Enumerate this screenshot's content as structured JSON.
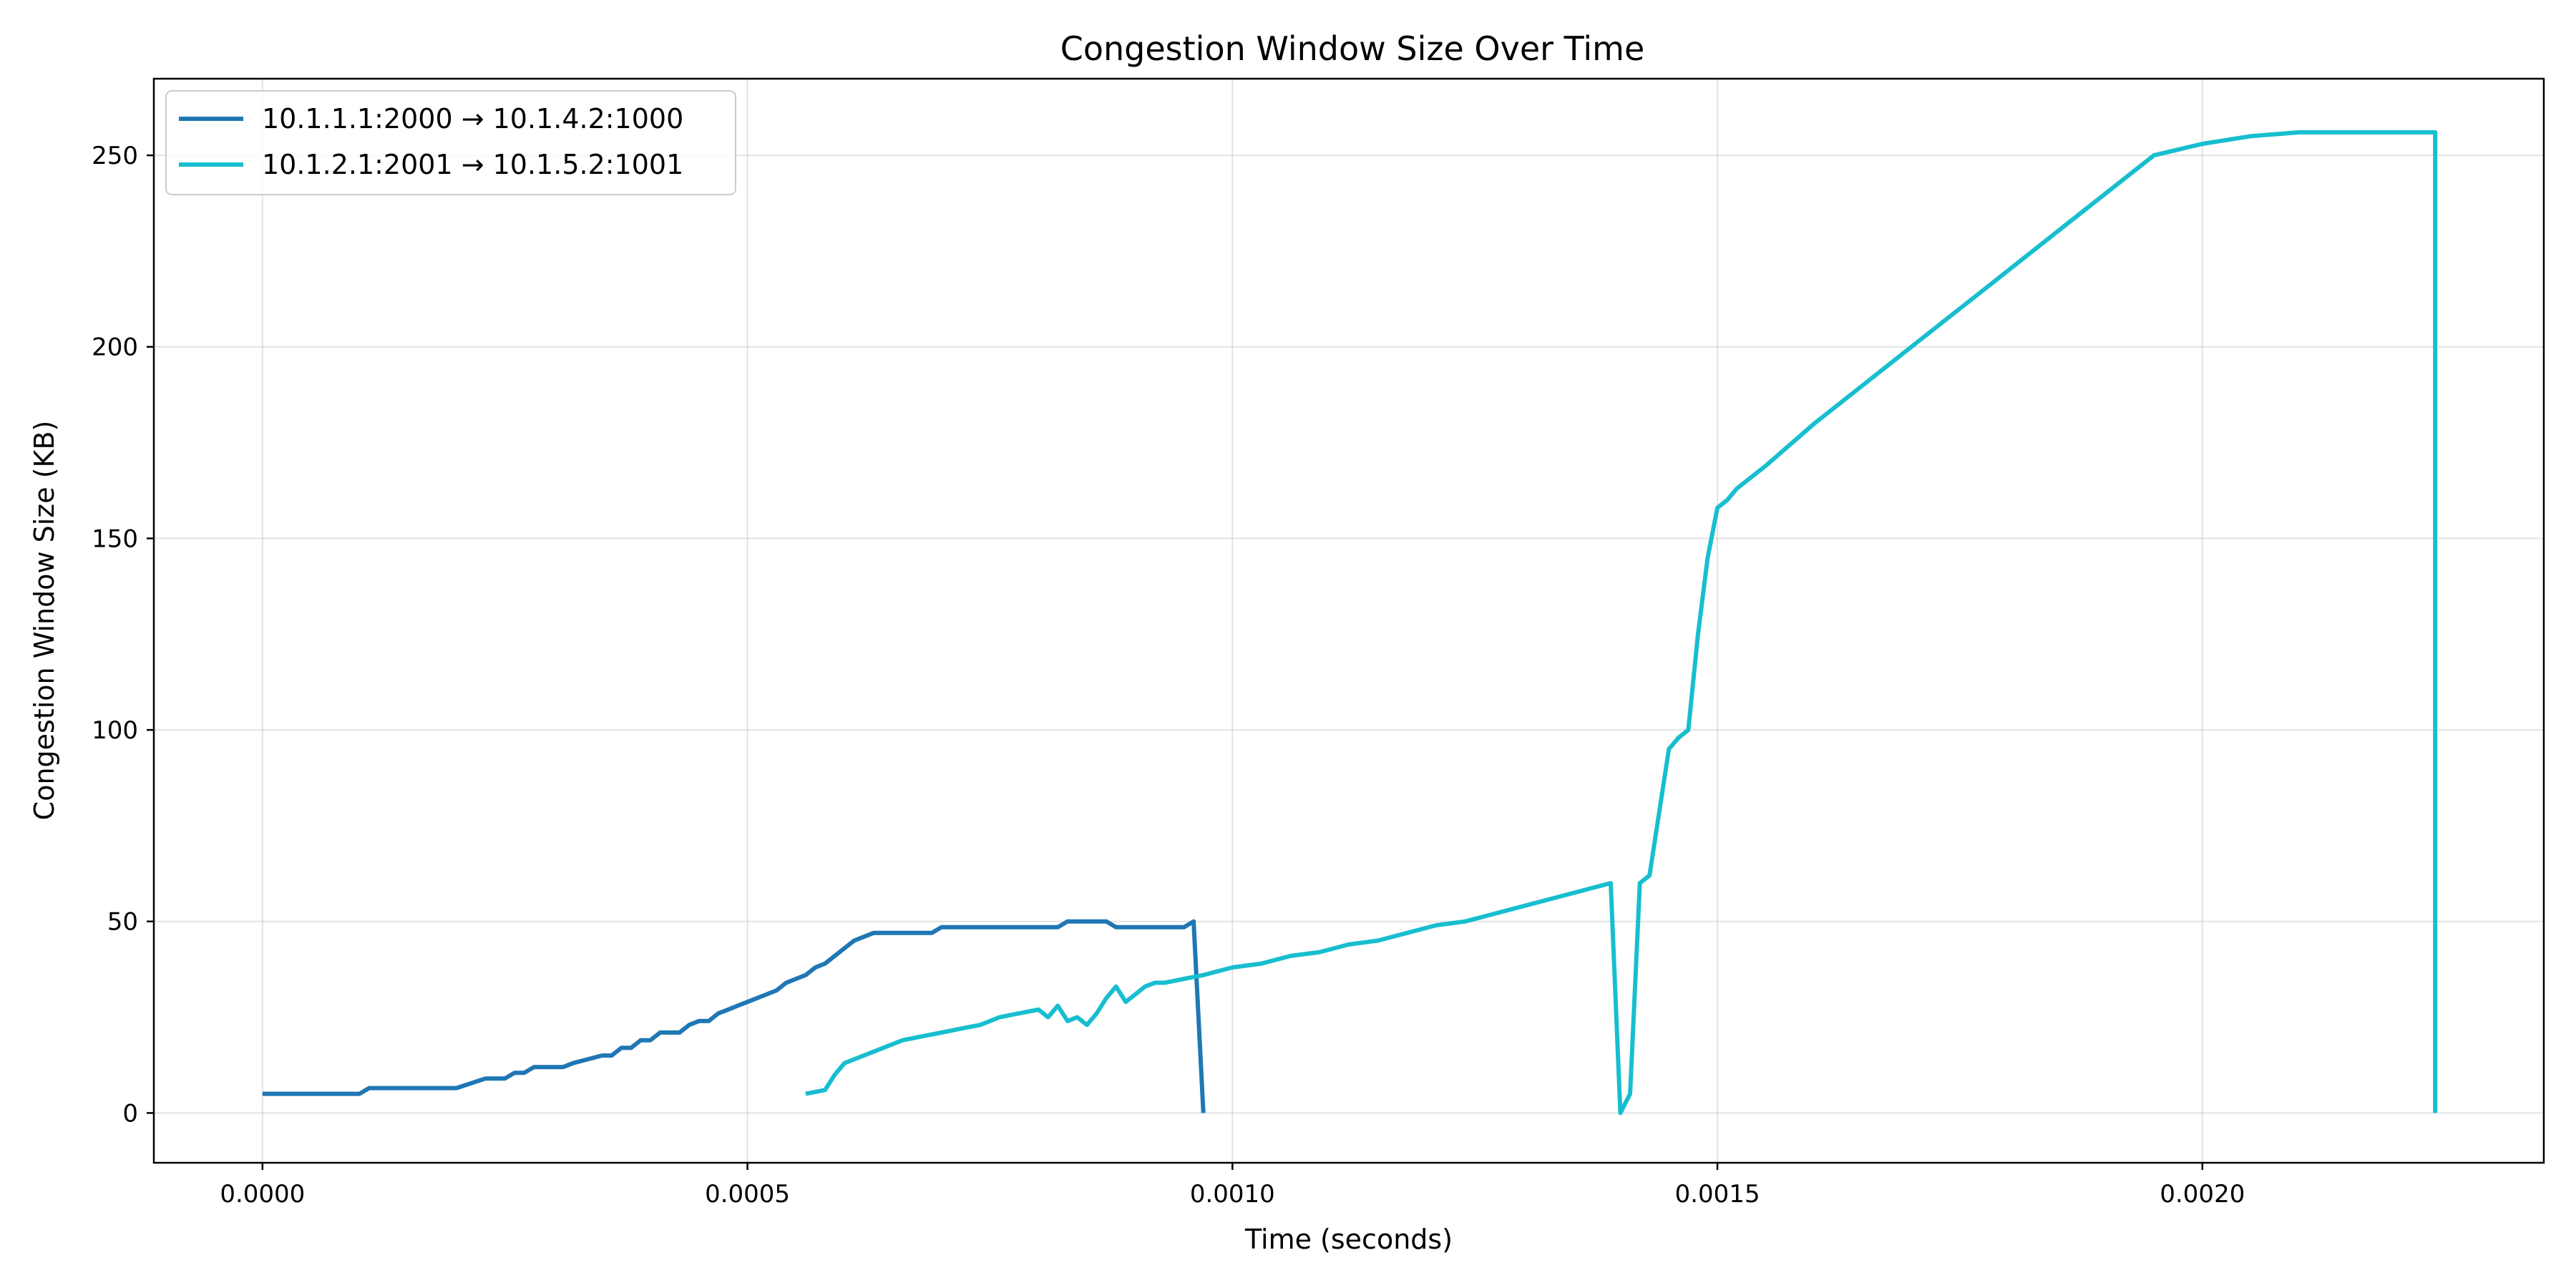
{
  "chart_data": {
    "type": "line",
    "title": "Congestion Window Size Over Time",
    "xlabel": "Time (seconds)",
    "ylabel": "Congestion Window Size (KB)",
    "xlim": [
      -0.000112,
      0.002352
    ],
    "ylim": [
      -13,
      270
    ],
    "xticks": [
      0.0,
      0.0005,
      0.001,
      0.0015,
      0.002
    ],
    "xtick_labels": [
      "0.0000",
      "0.0005",
      "0.0010",
      "0.0015",
      "0.0020"
    ],
    "yticks": [
      0,
      50,
      100,
      150,
      200,
      250
    ],
    "ytick_labels": [
      "0",
      "50",
      "100",
      "150",
      "200",
      "250"
    ],
    "grid": true,
    "legend_position": "upper left",
    "series": [
      {
        "name": "10.1.1.1:2000 → 10.1.4.2:1000",
        "color": "#1f77b4",
        "x": [
          0.0,
          0.0001,
          0.00011,
          0.0002,
          0.00023,
          0.00025,
          0.00026,
          0.00027,
          0.00028,
          0.0003,
          0.00031,
          0.00032,
          0.00035,
          0.00036,
          0.00037,
          0.00038,
          0.00039,
          0.0004,
          0.00041,
          0.00042,
          0.00043,
          0.00044,
          0.00045,
          0.00046,
          0.00047,
          0.00048,
          0.00049,
          0.0005,
          0.00051,
          0.00052,
          0.00053,
          0.00054,
          0.00055,
          0.00056,
          0.00057,
          0.00058,
          0.00059,
          0.0006,
          0.00061,
          0.00062,
          0.00063,
          0.00069,
          0.0007,
          0.00082,
          0.00083,
          0.00087,
          0.00088,
          0.00095,
          0.00096,
          0.00097
        ],
        "y": [
          5,
          5,
          6.5,
          6.5,
          9,
          9,
          10.5,
          10.5,
          12,
          12,
          12,
          13,
          15,
          15,
          17,
          17,
          19,
          19,
          21,
          21,
          21,
          23,
          24,
          24,
          26,
          27,
          28,
          29,
          30,
          31,
          32,
          34,
          35,
          36,
          38,
          39,
          41,
          43,
          45,
          46,
          47,
          47,
          48.5,
          48.5,
          50,
          50,
          48.5,
          48.5,
          50,
          0
        ]
      },
      {
        "name": "10.1.2.1:2001 → 10.1.5.2:1001",
        "color": "#17becf",
        "x": [
          0.00056,
          0.00058,
          0.00059,
          0.0006,
          0.00062,
          0.00064,
          0.00066,
          0.00068,
          0.0007,
          0.00072,
          0.00074,
          0.00076,
          0.00078,
          0.0008,
          0.00081,
          0.00082,
          0.00083,
          0.00084,
          0.00085,
          0.00086,
          0.00087,
          0.00088,
          0.00089,
          0.0009,
          0.00091,
          0.00092,
          0.00093,
          0.00095,
          0.00097,
          0.001,
          0.00103,
          0.00106,
          0.00109,
          0.00112,
          0.00115,
          0.00118,
          0.00121,
          0.00124,
          0.00127,
          0.0013,
          0.00133,
          0.00136,
          0.00139,
          0.0014,
          0.00141,
          0.00142,
          0.00143,
          0.00145,
          0.00146,
          0.00147,
          0.00148,
          0.00149,
          0.0015,
          0.00151,
          0.00152,
          0.00155,
          0.0016,
          0.00165,
          0.0017,
          0.00175,
          0.0018,
          0.00185,
          0.0019,
          0.00195,
          0.002,
          0.00205,
          0.0021,
          0.00215,
          0.0022,
          0.00224,
          0.00224
        ],
        "y": [
          5,
          6,
          10,
          13,
          15,
          17,
          19,
          20,
          21,
          22,
          23,
          25,
          26,
          27,
          25,
          28,
          24,
          25,
          23,
          26,
          30,
          33,
          29,
          31,
          33,
          34,
          34,
          35,
          36,
          38,
          39,
          41,
          42,
          44,
          45,
          47,
          49,
          50,
          52,
          54,
          56,
          58,
          60,
          0,
          5,
          60,
          62,
          95,
          98,
          100,
          125,
          145,
          158,
          160,
          163,
          169,
          180,
          190,
          200,
          210,
          220,
          230,
          240,
          250,
          253,
          255,
          256,
          256,
          256,
          256,
          0
        ]
      }
    ]
  }
}
